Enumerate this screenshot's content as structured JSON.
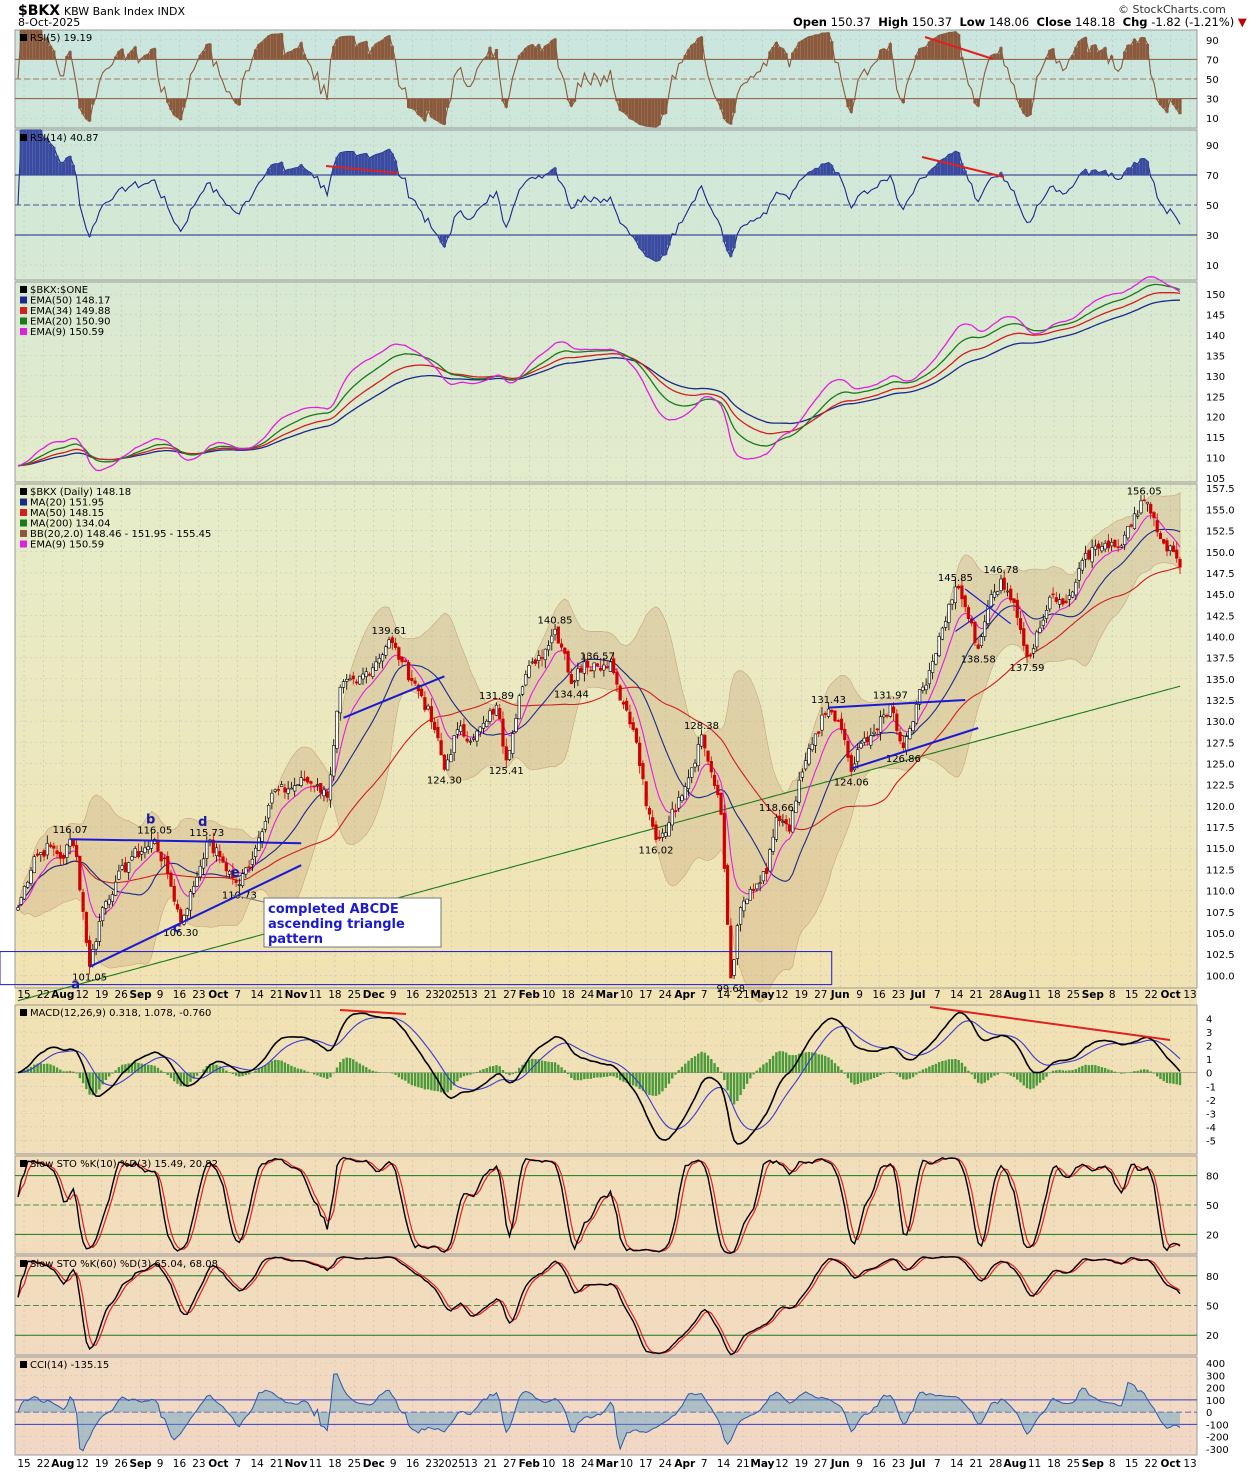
{
  "header": {
    "symbol": "$BKX",
    "name": "KBW Bank Index INDX",
    "date": "8-Oct-2025",
    "ohlc": {
      "open_label": "Open",
      "open": "150.37",
      "high_label": "High",
      "high": "150.37",
      "low_label": "Low",
      "low": "148.06",
      "close_label": "Close",
      "close": "148.18",
      "chg_label": "Chg",
      "chg": "-1.82 (-1.21%)"
    },
    "credit": "© StockCharts.com"
  },
  "x_axis_labels": [
    "15",
    "22",
    "Aug",
    "12",
    "19",
    "26",
    "Sep",
    "9",
    "16",
    "23",
    "Oct",
    "7",
    "14",
    "21",
    "Nov",
    "11",
    "18",
    "25",
    "Dec",
    "9",
    "16",
    "23",
    "2025",
    "13",
    "21",
    "27",
    "Feb",
    "10",
    "18",
    "24",
    "Mar",
    "10",
    "17",
    "24",
    "Apr",
    "7",
    "14",
    "21",
    "May",
    "12",
    "19",
    "27",
    "Jun",
    "9",
    "16",
    "23",
    "Jul",
    "7",
    "14",
    "21",
    "28",
    "Aug",
    "11",
    "18",
    "25",
    "Sep",
    "8",
    "15",
    "22",
    "Oct",
    "13"
  ],
  "annotations": {
    "wave_labels": [
      "a",
      "b",
      "c",
      "d",
      "e"
    ],
    "pattern_note_lines": [
      "completed ABCDE",
      "ascending triangle",
      "pattern"
    ],
    "price_labels": [
      "116.07",
      "116.05",
      "115.73",
      "110.73",
      "106.30",
      "101.05",
      "139.61",
      "124.30",
      "131.89",
      "125.41",
      "140.85",
      "134.44",
      "136.57",
      "128.38",
      "116.02",
      "99.68",
      "118.66",
      "131.43",
      "124.06",
      "131.97",
      "126.86",
      "145.85",
      "138.58",
      "146.78",
      "137.59",
      "156.05"
    ]
  },
  "chart_data": [
    {
      "type": "line",
      "panel": "rsi5",
      "legend": [
        "RSI(5) 19.19"
      ],
      "ylim": [
        0,
        100
      ],
      "yticks": [
        10,
        30,
        50,
        70,
        90
      ],
      "reference_lines": [
        30,
        70
      ],
      "series": [
        {
          "name": "RSI(5)",
          "color": "#8b5a3c",
          "last": 19.19
        }
      ]
    },
    {
      "type": "line",
      "panel": "rsi14",
      "legend": [
        "RSI(14) 40.87"
      ],
      "ylim": [
        0,
        100
      ],
      "yticks": [
        10,
        30,
        50,
        70,
        90
      ],
      "reference_lines": [
        30,
        70
      ],
      "series": [
        {
          "name": "RSI(14)",
          "color": "#1a2a8a",
          "last": 40.87
        }
      ]
    },
    {
      "type": "line",
      "panel": "ema_ratio",
      "legend": [
        "$BKX:$ONE",
        "EMA(50) 148.17",
        "EMA(34) 149.88",
        "EMA(20) 150.90",
        "EMA(9) 150.59"
      ],
      "ylim": [
        104,
        153
      ],
      "yticks": [
        105,
        110,
        115,
        120,
        125,
        130,
        135,
        140,
        145,
        150
      ],
      "series": [
        {
          "name": "EMA(50)",
          "color": "#1a2a8a",
          "last": 148.17
        },
        {
          "name": "EMA(34)",
          "color": "#d02020",
          "last": 149.88
        },
        {
          "name": "EMA(20)",
          "color": "#1a7a1a",
          "last": 150.9
        },
        {
          "name": "EMA(9)",
          "color": "#e020e0",
          "last": 150.59
        }
      ]
    },
    {
      "type": "candlestick",
      "panel": "price",
      "legend": [
        "$BKX (Daily) 148.18",
        "MA(20) 151.95",
        "MA(50) 148.15",
        "MA(200) 134.04",
        "BB(20,2.0) 148.46 - 151.95 - 155.45",
        "EMA(9) 150.59"
      ],
      "ylim": [
        98.5,
        158
      ],
      "yticks": [
        100.0,
        102.5,
        105.0,
        107.5,
        110.0,
        112.5,
        115.0,
        117.5,
        120.0,
        122.5,
        125.0,
        127.5,
        130.0,
        132.5,
        135.0,
        137.5,
        140.0,
        142.5,
        145.0,
        147.5,
        150.0,
        152.5,
        155.0,
        157.5
      ],
      "anchor_closes": [
        [
          0,
          108
        ],
        [
          5,
          114
        ],
        [
          10,
          115.2
        ],
        [
          14,
          113.8
        ],
        [
          16,
          116.07
        ],
        [
          18,
          114
        ],
        [
          22,
          101.05
        ],
        [
          26,
          108
        ],
        [
          30,
          111
        ],
        [
          35,
          114
        ],
        [
          40,
          115.2
        ],
        [
          42,
          116.05
        ],
        [
          46,
          112
        ],
        [
          50,
          106.3
        ],
        [
          54,
          110.5
        ],
        [
          58,
          115.73
        ],
        [
          62,
          114
        ],
        [
          66,
          111.5
        ],
        [
          68,
          110.73
        ],
        [
          73,
          115
        ],
        [
          78,
          121.5
        ],
        [
          83,
          122
        ],
        [
          88,
          123
        ],
        [
          92,
          122.5
        ],
        [
          95,
          121
        ],
        [
          99,
          134
        ],
        [
          104,
          134.5
        ],
        [
          110,
          137
        ],
        [
          114,
          139.61
        ],
        [
          118,
          137
        ],
        [
          124,
          133
        ],
        [
          128,
          129
        ],
        [
          131,
          124.3
        ],
        [
          135,
          129
        ],
        [
          140,
          128
        ],
        [
          144,
          130
        ],
        [
          147,
          131.89
        ],
        [
          150,
          125.41
        ],
        [
          154,
          133
        ],
        [
          158,
          137
        ],
        [
          162,
          138.5
        ],
        [
          165,
          140.85
        ],
        [
          168,
          138
        ],
        [
          170,
          134.44
        ],
        [
          174,
          137
        ],
        [
          178,
          136.57
        ],
        [
          182,
          137
        ],
        [
          186,
          132
        ],
        [
          190,
          127.5
        ],
        [
          193,
          120
        ],
        [
          196,
          116.02
        ],
        [
          200,
          118
        ],
        [
          203,
          121
        ],
        [
          207,
          124.5
        ],
        [
          210,
          128.38
        ],
        [
          213,
          124
        ],
        [
          216,
          119
        ],
        [
          219,
          99.68
        ],
        [
          222,
          108
        ],
        [
          226,
          110
        ],
        [
          230,
          112
        ],
        [
          233,
          118.66
        ],
        [
          237,
          117
        ],
        [
          241,
          124
        ],
        [
          245,
          128.5
        ],
        [
          249,
          131.43
        ],
        [
          253,
          129
        ],
        [
          256,
          124.06
        ],
        [
          260,
          128
        ],
        [
          264,
          129
        ],
        [
          268,
          131.97
        ],
        [
          272,
          126.86
        ],
        [
          276,
          132
        ],
        [
          280,
          136
        ],
        [
          284,
          141
        ],
        [
          288,
          145.85
        ],
        [
          291,
          143.5
        ],
        [
          295,
          138.58
        ],
        [
          298,
          143.5
        ],
        [
          302,
          146.78
        ],
        [
          306,
          144
        ],
        [
          310,
          137.59
        ],
        [
          314,
          141
        ],
        [
          318,
          145
        ],
        [
          322,
          144
        ],
        [
          326,
          148
        ],
        [
          330,
          150.5
        ],
        [
          334,
          151
        ],
        [
          338,
          150.5
        ],
        [
          342,
          153
        ],
        [
          346,
          156.05
        ],
        [
          349,
          154
        ],
        [
          352,
          151
        ],
        [
          355,
          150
        ],
        [
          357,
          148.18
        ]
      ]
    },
    {
      "type": "line",
      "panel": "macd",
      "legend": [
        "MACD(12,26,9) 0.318, 1.078, -0.760"
      ],
      "ylim": [
        -6,
        5
      ],
      "yticks": [
        -5,
        -4,
        -3,
        -2,
        -1,
        0,
        1,
        2,
        3,
        4
      ],
      "series": [
        {
          "name": "MACD",
          "color": "#000000",
          "last": 0.318
        },
        {
          "name": "Signal",
          "color": "#3a3ad0",
          "last": 1.078
        },
        {
          "name": "Histogram",
          "color": "#4a9a3a",
          "last": -0.76
        }
      ]
    },
    {
      "type": "line",
      "panel": "sto10",
      "legend": [
        "Slow STO %K(10) %D(3) 15.49, 20.82"
      ],
      "ylim": [
        0,
        100
      ],
      "yticks": [
        20,
        50,
        80
      ],
      "reference_lines": [
        20,
        50,
        80
      ],
      "series": [
        {
          "name": "%K(10)",
          "color": "#000000",
          "last": 15.49
        },
        {
          "name": "%D(3)",
          "color": "#e02020",
          "last": 20.82
        }
      ]
    },
    {
      "type": "line",
      "panel": "sto60",
      "legend": [
        "Slow STO %K(60) %D(3) 65.04, 68.08"
      ],
      "ylim": [
        0,
        100
      ],
      "yticks": [
        20,
        50,
        80
      ],
      "reference_lines": [
        20,
        50,
        80
      ],
      "series": [
        {
          "name": "%K(60)",
          "color": "#000000",
          "last": 65.04
        },
        {
          "name": "%D(3)",
          "color": "#e02020",
          "last": 68.08
        }
      ]
    },
    {
      "type": "line",
      "panel": "cci",
      "legend": [
        "CCI(14) -135.15"
      ],
      "ylim": [
        -350,
        450
      ],
      "yticks": [
        -300,
        -200,
        -100,
        0,
        100,
        200,
        300,
        400
      ],
      "reference_lines": [
        -100,
        0,
        100
      ],
      "series": [
        {
          "name": "CCI(14)",
          "color": "#2a5aaa",
          "last": -135.15
        }
      ]
    }
  ]
}
